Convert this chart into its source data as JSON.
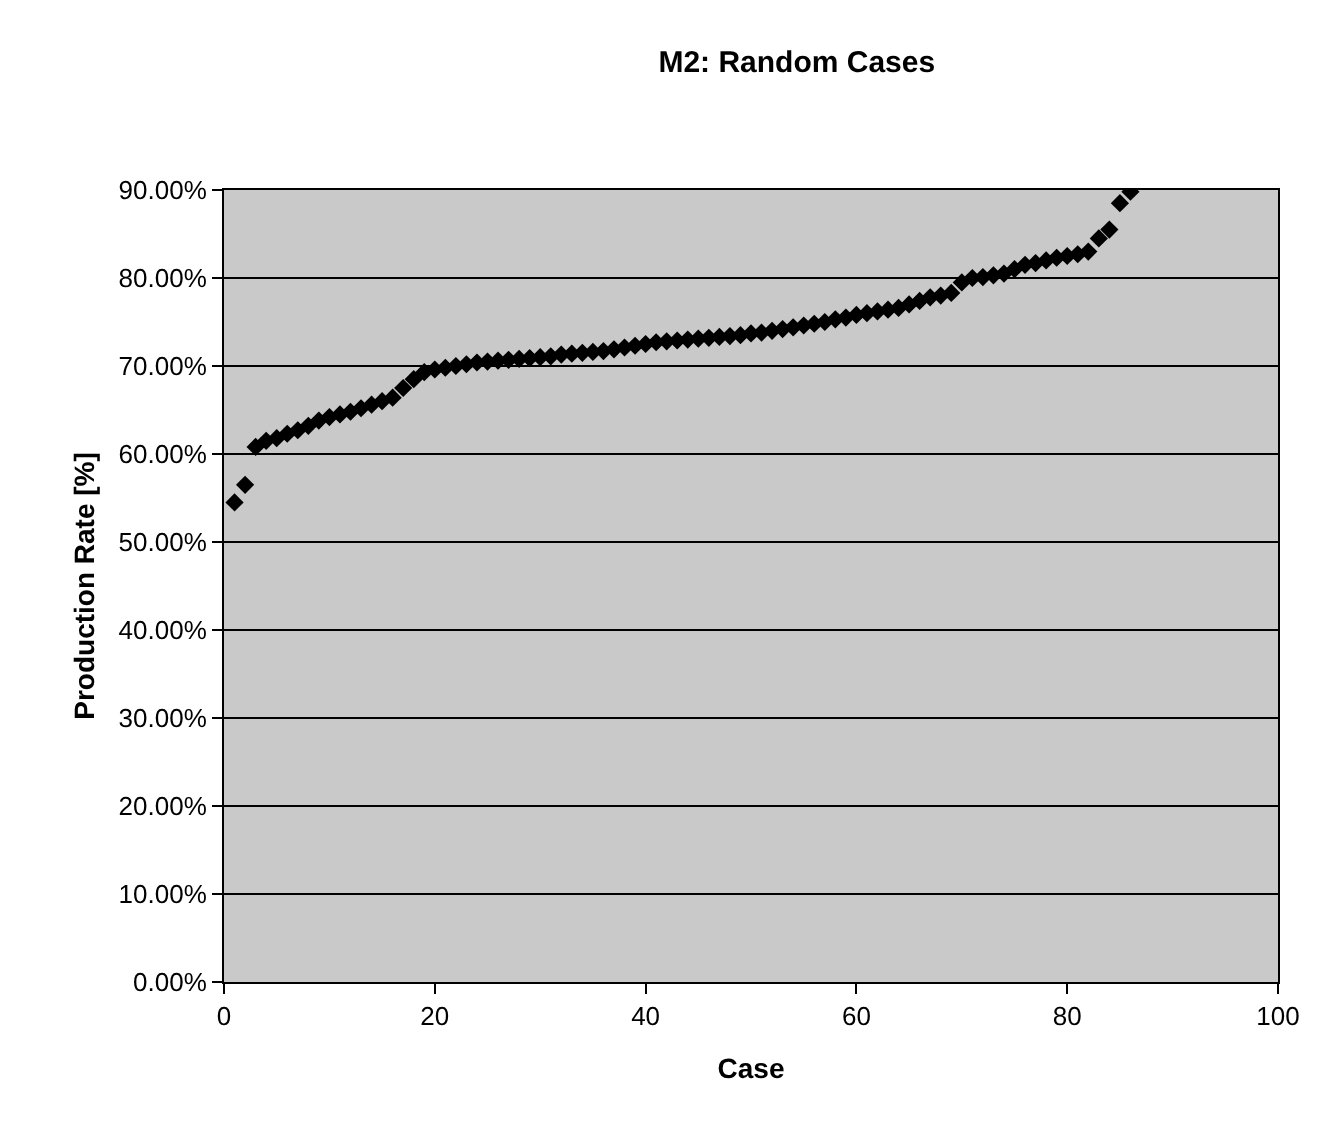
{
  "chart_data": {
    "type": "scatter",
    "title": "M2: Random Cases",
    "xlabel": "Case",
    "ylabel": "Production Rate [%]",
    "x": [
      1,
      2,
      3,
      4,
      5,
      6,
      7,
      8,
      9,
      10,
      11,
      12,
      13,
      14,
      15,
      16,
      17,
      18,
      19,
      20,
      21,
      22,
      23,
      24,
      25,
      26,
      27,
      28,
      29,
      30,
      31,
      32,
      33,
      34,
      35,
      36,
      37,
      38,
      39,
      40,
      41,
      42,
      43,
      44,
      45,
      46,
      47,
      48,
      49,
      50,
      51,
      52,
      53,
      54,
      55,
      56,
      57,
      58,
      59,
      60,
      61,
      62,
      63,
      64,
      65,
      66,
      67,
      68,
      69,
      70,
      71,
      72,
      73,
      74,
      75,
      76,
      77,
      78,
      79,
      80,
      81,
      82,
      83,
      84,
      85,
      86
    ],
    "series": [
      {
        "color": "#000000",
        "values": [
          54.5,
          56.5,
          60.8,
          61.5,
          61.8,
          62.3,
          62.7,
          63.2,
          63.8,
          64.2,
          64.5,
          64.8,
          65.2,
          65.6,
          66.0,
          66.4,
          67.5,
          68.5,
          69.3,
          69.6,
          69.8,
          70.0,
          70.2,
          70.4,
          70.5,
          70.6,
          70.7,
          70.8,
          70.9,
          71.0,
          71.1,
          71.3,
          71.4,
          71.5,
          71.6,
          71.7,
          71.9,
          72.1,
          72.3,
          72.5,
          72.7,
          72.8,
          72.9,
          73.0,
          73.1,
          73.2,
          73.3,
          73.4,
          73.5,
          73.7,
          73.8,
          74.0,
          74.2,
          74.4,
          74.6,
          74.8,
          75.0,
          75.3,
          75.5,
          75.8,
          76.0,
          76.2,
          76.4,
          76.6,
          77.0,
          77.4,
          77.8,
          78.0,
          78.3,
          79.5,
          80.0,
          80.1,
          80.3,
          80.5,
          81.0,
          81.5,
          81.7,
          82.0,
          82.3,
          82.5,
          82.7,
          83.0,
          84.5,
          85.5,
          88.5,
          89.8
        ]
      }
    ],
    "xlim": [
      0,
      100
    ],
    "xticks": [
      0,
      20,
      40,
      60,
      80,
      100
    ],
    "ylim": [
      0,
      90
    ],
    "yticks": [
      {
        "value": 0,
        "label": "0.00%"
      },
      {
        "value": 10,
        "label": "10.00%"
      },
      {
        "value": 20,
        "label": "20.00%"
      },
      {
        "value": 30,
        "label": "30.00%"
      },
      {
        "value": 40,
        "label": "40.00%"
      },
      {
        "value": 50,
        "label": "50.00%"
      },
      {
        "value": 60,
        "label": "60.00%"
      },
      {
        "value": 70,
        "label": "70.00%"
      },
      {
        "value": 80,
        "label": "80.00%"
      },
      {
        "value": 90,
        "label": "90.00%"
      }
    ],
    "grid": "y",
    "marker": "diamond"
  }
}
